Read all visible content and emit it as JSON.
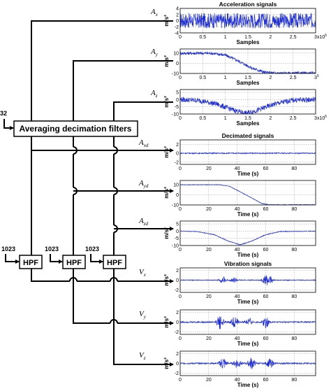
{
  "diagram": {
    "filter_block_label": "Averaging decimation filters",
    "filter_block_input": "32",
    "hpf_label": "HPF",
    "hpf_input": "1023",
    "raw_signals": [
      {
        "sym": "A",
        "sub": "x"
      },
      {
        "sym": "A",
        "sub": "y"
      },
      {
        "sym": "A",
        "sub": "z"
      }
    ],
    "decimated_signals": [
      {
        "sym": "A",
        "sub": "xd"
      },
      {
        "sym": "A",
        "sub": "yd"
      },
      {
        "sym": "A",
        "sub": "zd"
      }
    ],
    "vibration_signals": [
      {
        "sym": "V",
        "sub": "x"
      },
      {
        "sym": "V",
        "sub": "y"
      },
      {
        "sym": "V",
        "sub": "z"
      }
    ]
  },
  "chart_data": [
    {
      "type": "line",
      "group_title": "Acceleration signals",
      "signal": "Ax",
      "xlabel": "Samples",
      "ylabel": "m/s²",
      "xticks": [
        "0",
        "0.5",
        "1",
        "1.5",
        "2",
        "2.5",
        "3"
      ],
      "xexp": "x10",
      "xexp_pow": "5",
      "yticks": [
        "4",
        "2",
        "0",
        "-2",
        "-4"
      ],
      "ylim": [
        -4,
        4
      ],
      "xlim": [
        0,
        3
      ],
      "grid": true,
      "series": [
        {
          "baseline": [
            [
              0,
              0
            ],
            [
              3,
              0
            ]
          ],
          "noise_amplitude": 2.5
        }
      ]
    },
    {
      "type": "line",
      "group_title": "",
      "signal": "Ay",
      "xlabel": "Samples",
      "ylabel": "m/s²",
      "xticks": [
        "0",
        "0.5",
        "1",
        "1.5",
        "2",
        "2.5",
        "3"
      ],
      "xexp": "",
      "xexp_pow": "5",
      "yticks": [
        "10",
        "0",
        "-10"
      ],
      "ylim": [
        -10,
        14
      ],
      "xlim": [
        0,
        3
      ],
      "grid": true,
      "series": [
        {
          "baseline": [
            [
              0,
              9.8
            ],
            [
              0.7,
              9.8
            ],
            [
              1.0,
              8
            ],
            [
              1.3,
              2
            ],
            [
              1.6,
              -5
            ],
            [
              1.9,
              -9.2
            ],
            [
              2.2,
              -9.8
            ],
            [
              3,
              -9.8
            ]
          ],
          "noise_amplitude": 1.5
        }
      ]
    },
    {
      "type": "line",
      "group_title": "",
      "signal": "Az",
      "xlabel": "Samples",
      "ylabel": "m/s²",
      "xticks": [
        "0",
        "0.5",
        "1",
        "1.5",
        "2",
        "2.5",
        "3"
      ],
      "xexp": "x10",
      "xexp_pow": "5",
      "yticks": [
        "5",
        "0",
        "-5",
        "-10"
      ],
      "ylim": [
        -10,
        7
      ],
      "xlim": [
        0,
        3
      ],
      "grid": true,
      "series": [
        {
          "baseline": [
            [
              0,
              0
            ],
            [
              0.4,
              -0.5
            ],
            [
              0.8,
              -3
            ],
            [
              1.2,
              -7.5
            ],
            [
              1.45,
              -9.5
            ],
            [
              1.7,
              -7.5
            ],
            [
              2.1,
              -3
            ],
            [
              2.5,
              -0.3
            ],
            [
              3,
              0
            ]
          ],
          "noise_amplitude": 1.8
        }
      ]
    },
    {
      "type": "line",
      "group_title": "Decimated signals",
      "signal": "Axd",
      "xlabel": "Time (s)",
      "ylabel": "m/s²",
      "xticks": [
        "0",
        "20",
        "40",
        "60",
        "80"
      ],
      "yticks": [
        "2",
        "0",
        "-2"
      ],
      "ylim": [
        -2.5,
        3
      ],
      "xlim": [
        0,
        95
      ],
      "grid": true,
      "series": [
        {
          "baseline": [
            [
              0,
              0
            ],
            [
              95,
              0
            ]
          ],
          "noise_amplitude": 0.12
        }
      ]
    },
    {
      "type": "line",
      "group_title": "",
      "signal": "Ayd",
      "xlabel": "Time (s)",
      "ylabel": "m/s²",
      "xticks": [
        "0",
        "20",
        "40",
        "60",
        "80"
      ],
      "yticks": [
        "10",
        "0",
        "-10"
      ],
      "ylim": [
        -10,
        14
      ],
      "xlim": [
        0,
        95
      ],
      "grid": true,
      "series": [
        {
          "baseline": [
            [
              0,
              9.8
            ],
            [
              28,
              9.8
            ],
            [
              35,
              8
            ],
            [
              42,
              3
            ],
            [
              50,
              -3
            ],
            [
              57,
              -8.5
            ],
            [
              62,
              -9.8
            ],
            [
              95,
              -9.8
            ]
          ],
          "noise_amplitude": 0.3
        }
      ]
    },
    {
      "type": "line",
      "group_title": "",
      "signal": "Azd",
      "xlabel": "Time (s)",
      "ylabel": "m/s²",
      "xticks": [
        "0",
        "20",
        "40",
        "60",
        "80"
      ],
      "yticks": [
        "5",
        "0",
        "-5",
        "-10"
      ],
      "ylim": [
        -10,
        7
      ],
      "xlim": [
        0,
        95
      ],
      "grid": true,
      "series": [
        {
          "baseline": [
            [
              0,
              0
            ],
            [
              12,
              -0.3
            ],
            [
              24,
              -2.5
            ],
            [
              34,
              -7
            ],
            [
              42,
              -9.5
            ],
            [
              50,
              -7
            ],
            [
              60,
              -2.5
            ],
            [
              70,
              -0.3
            ],
            [
              95,
              0
            ]
          ],
          "noise_amplitude": 0.25
        }
      ]
    },
    {
      "type": "line",
      "group_title": "Vibration signals",
      "signal": "Vx",
      "xlabel": "Time (s)",
      "ylabel": "m/s²",
      "xticks": [
        "0",
        "20",
        "40",
        "60",
        "80"
      ],
      "yticks": [
        "2",
        "0",
        "-2"
      ],
      "ylim": [
        -2.5,
        2.5
      ],
      "xlim": [
        0,
        95
      ],
      "grid": true,
      "series": [
        {
          "bursts": [
            [
              30,
              1.2
            ],
            [
              38,
              0.9
            ],
            [
              60,
              1.5
            ],
            [
              63,
              1.4
            ]
          ],
          "noise_amplitude": 0.25
        }
      ]
    },
    {
      "type": "line",
      "group_title": "",
      "signal": "Vy",
      "xlabel": "Time (s)",
      "ylabel": "m/s²",
      "xticks": [
        "0",
        "20",
        "40",
        "60",
        "80"
      ],
      "yticks": [
        "2",
        "0",
        "-2"
      ],
      "ylim": [
        -2.5,
        2.5
      ],
      "xlim": [
        0,
        95
      ],
      "grid": true,
      "series": [
        {
          "bursts": [
            [
              28,
              1.4
            ],
            [
              38,
              1.0
            ],
            [
              48,
              0.8
            ],
            [
              60,
              1.1
            ]
          ],
          "noise_amplitude": 0.45
        }
      ]
    },
    {
      "type": "line",
      "group_title": "",
      "signal": "Vz",
      "xlabel": "Time (s)",
      "ylabel": "m/s²",
      "xticks": [
        "0",
        "20",
        "40",
        "60",
        "80"
      ],
      "yticks": [
        "2",
        "0",
        "-2"
      ],
      "ylim": [
        -2.5,
        2.5
      ],
      "xlim": [
        0,
        95
      ],
      "grid": true,
      "series": [
        {
          "bursts": [
            [
              30,
              1.3
            ],
            [
              40,
              1.0
            ],
            [
              50,
              1.2
            ],
            [
              63,
              0.9
            ]
          ],
          "noise_amplitude": 0.45
        }
      ]
    }
  ]
}
